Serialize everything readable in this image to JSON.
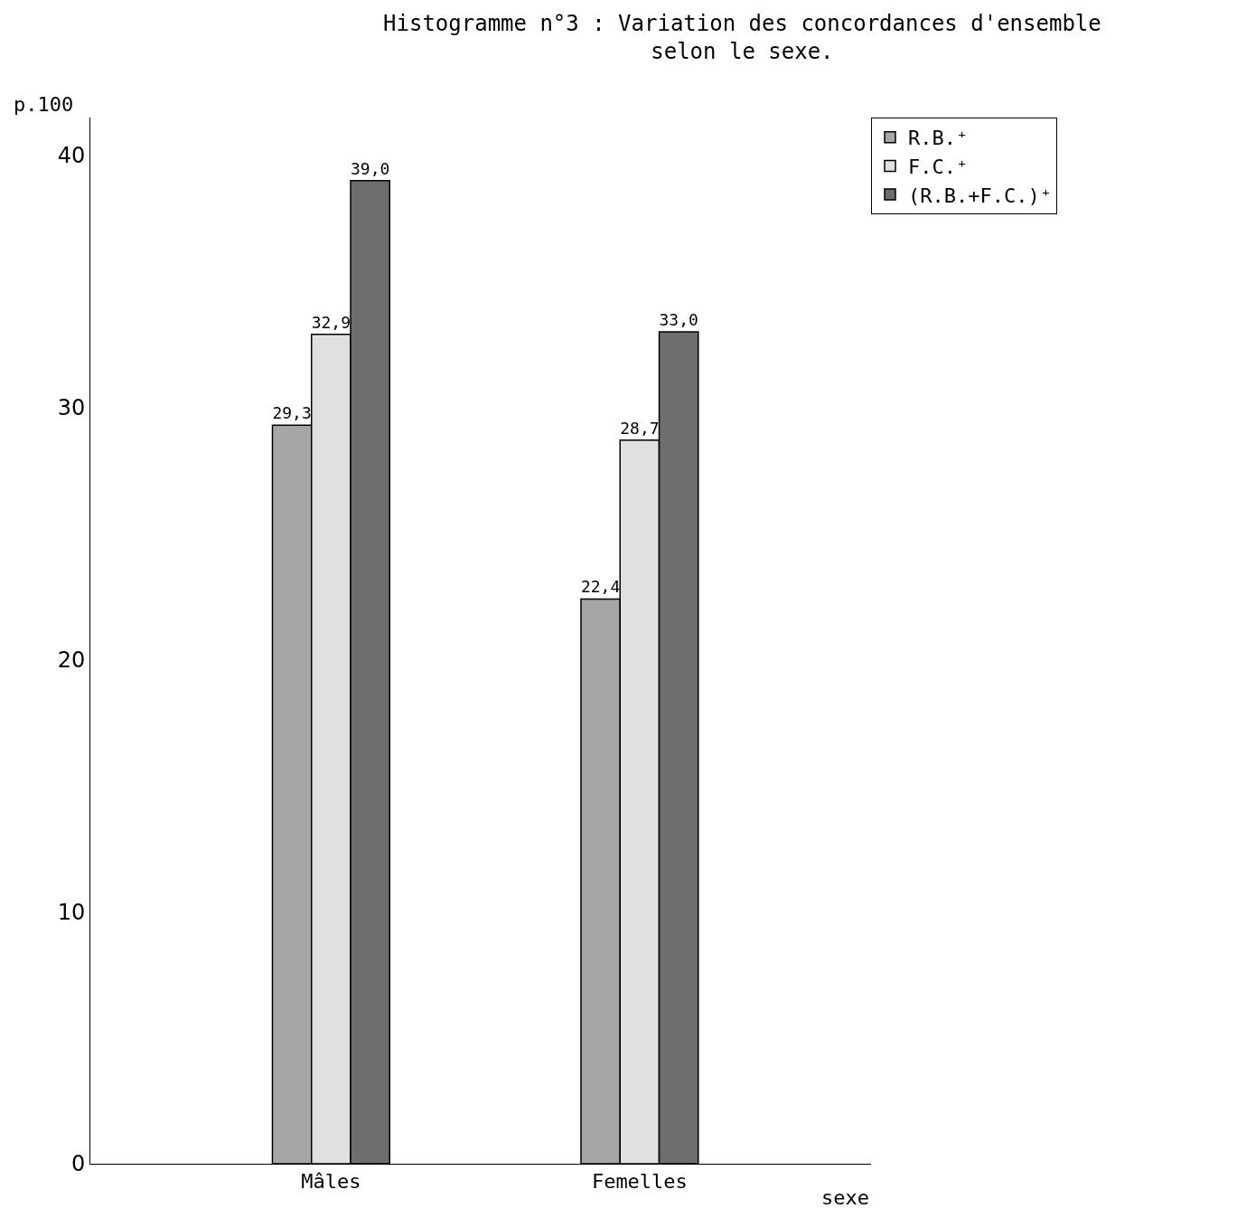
{
  "chart_data": {
    "type": "bar",
    "title": "Histogramme n°3 : Variation des concordances d'ensemble selon le sexe.",
    "xlabel": "sexe",
    "ylabel": "p.100",
    "categories": [
      "Mâles",
      "Femelles"
    ],
    "series": [
      {
        "name": "R.B.⁺",
        "color": "#a6a6a6",
        "values": [
          29.3,
          22.4
        ],
        "value_labels": [
          "29,3",
          "22,4"
        ]
      },
      {
        "name": "F.C.⁺",
        "color": "#e0e0e0",
        "values": [
          32.9,
          28.7
        ],
        "value_labels": [
          "32,9",
          "28,7"
        ]
      },
      {
        "name": "(R.B.+F.C.)⁺",
        "color": "#6e6e6e",
        "values": [
          39.0,
          33.0
        ],
        "value_labels": [
          "39,0",
          "33,0"
        ]
      }
    ],
    "ylim": [
      0,
      41.5
    ],
    "yticks": [
      0,
      10,
      20,
      30,
      40
    ],
    "legend": "top right"
  }
}
